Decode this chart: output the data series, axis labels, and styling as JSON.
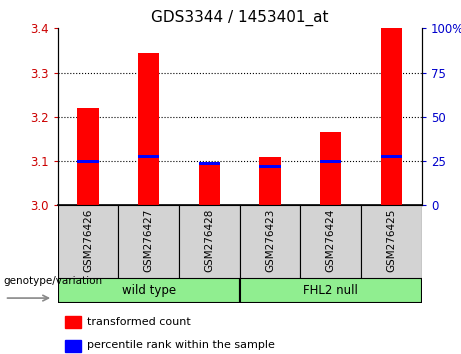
{
  "title": "GDS3344 / 1453401_at",
  "samples": [
    "GSM276426",
    "GSM276427",
    "GSM276428",
    "GSM276423",
    "GSM276424",
    "GSM276425"
  ],
  "red_values": [
    3.22,
    3.345,
    3.09,
    3.11,
    3.165,
    3.4
  ],
  "blue_values": [
    3.1,
    3.11,
    3.095,
    3.088,
    3.1,
    3.11
  ],
  "y_min": 3.0,
  "y_max": 3.4,
  "y_ticks_left": [
    3.0,
    3.1,
    3.2,
    3.3,
    3.4
  ],
  "y_ticks_right": [
    0,
    25,
    50,
    75,
    100
  ],
  "y_ticks_right_labels": [
    "0",
    "25",
    "50",
    "75",
    "100%"
  ],
  "group_label": "genotype/variation",
  "legend_red": "transformed count",
  "legend_blue": "percentile rank within the sample",
  "bar_width": 0.35,
  "title_fontsize": 11,
  "tick_fontsize": 8.5,
  "left_tick_color": "#cc0000",
  "right_tick_color": "#0000cc",
  "sample_box_color": "#d3d3d3",
  "wt_color": "#90EE90",
  "fhl2_color": "#90EE90"
}
